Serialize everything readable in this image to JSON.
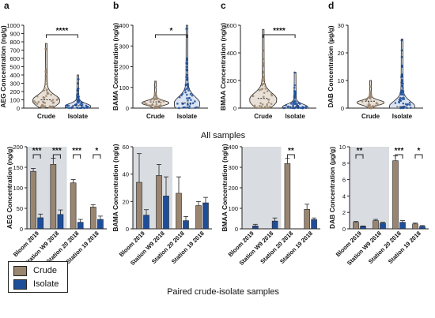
{
  "colors": {
    "crude": "#9a8570",
    "isolate": "#1f4e99",
    "shade": "#d9dde1",
    "axis": "#222222"
  },
  "figure": {
    "section_top": "All samples",
    "section_bottom": "Paired crude-isolate samples"
  },
  "legend": {
    "items": [
      {
        "label": "Crude",
        "color": "#9a8570"
      },
      {
        "label": "Isolate",
        "color": "#1f4e99"
      }
    ]
  },
  "chart_data": [
    {
      "panel": "a",
      "type": "violin",
      "ylabel": "AEG Concentration (ng/g)",
      "ylim": [
        0,
        1000
      ],
      "yticks": [
        0,
        100,
        200,
        300,
        400,
        500,
        600,
        700,
        800,
        900,
        1000
      ],
      "categories": [
        "Crude",
        "Isolate"
      ],
      "series": [
        {
          "name": "Crude",
          "min": 5,
          "max": 780,
          "median": 100,
          "mode": 90
        },
        {
          "name": "Isolate",
          "min": 0,
          "max": 400,
          "median": 30,
          "mode": 20
        }
      ],
      "significance": [
        {
          "between": [
            "Crude",
            "Isolate"
          ],
          "label": "****"
        }
      ]
    },
    {
      "panel": "b",
      "type": "violin",
      "ylabel": "BAMA Concentration (ng/g)",
      "ylim": [
        0,
        400
      ],
      "yticks": [
        0,
        100,
        200,
        300,
        400
      ],
      "categories": [
        "Crude",
        "Isolate"
      ],
      "series": [
        {
          "name": "Crude",
          "min": 0,
          "max": 130,
          "median": 30,
          "mode": 25
        },
        {
          "name": "Isolate",
          "min": 0,
          "max": 400,
          "median": 25,
          "mode": 20
        }
      ],
      "significance": [
        {
          "between": [
            "Crude",
            "Isolate"
          ],
          "label": "*"
        }
      ]
    },
    {
      "panel": "c",
      "type": "violin",
      "ylabel": "BMAA Concentration (ng/g)",
      "ylim": [
        0,
        600
      ],
      "yticks": [
        0,
        200,
        400,
        600
      ],
      "categories": [
        "Crude",
        "Isolate"
      ],
      "series": [
        {
          "name": "Crude",
          "min": 0,
          "max": 570,
          "median": 70,
          "mode": 60
        },
        {
          "name": "Isolate",
          "min": 0,
          "max": 260,
          "median": 10,
          "mode": 5
        }
      ],
      "significance": [
        {
          "between": [
            "Crude",
            "Isolate"
          ],
          "label": "****"
        }
      ]
    },
    {
      "panel": "d",
      "type": "violin",
      "ylabel": "DAB Concentration (µg/g)",
      "ylim": [
        0,
        30
      ],
      "yticks": [
        0,
        10,
        20,
        30
      ],
      "categories": [
        "Crude",
        "Isolate"
      ],
      "series": [
        {
          "name": "Crude",
          "min": 0,
          "max": 10,
          "median": 2.5,
          "mode": 2
        },
        {
          "name": "Isolate",
          "min": 0,
          "max": 25,
          "median": 0.5,
          "mode": 0.3
        }
      ]
    },
    {
      "panel": "e",
      "type": "bar",
      "ylabel": "AEG Concentration (ng/g)",
      "ylim": [
        0,
        200
      ],
      "yticks": [
        0,
        50,
        100,
        150,
        200
      ],
      "categories": [
        "Bloom 2019",
        "Station W9 2018",
        "Station 20 2018",
        "Station 19 2018"
      ],
      "shaded_categories": [
        0,
        1
      ],
      "series": [
        {
          "name": "Crude",
          "values": [
            140,
            157,
            112,
            53
          ],
          "errors": [
            7,
            15,
            8,
            6
          ]
        },
        {
          "name": "Isolate",
          "values": [
            27,
            35,
            16,
            23
          ],
          "errors": [
            9,
            11,
            7,
            8
          ]
        }
      ],
      "significance": [
        "***",
        "***",
        "***",
        "*"
      ]
    },
    {
      "panel": "f",
      "type": "bar",
      "ylabel": "BAMA Concentration (ng/g)",
      "ylim": [
        0,
        60
      ],
      "yticks": [
        0,
        20,
        40,
        60
      ],
      "categories": [
        "Bloom 2019",
        "Station W9 2018",
        "Station 20 2018",
        "Station 19 2018"
      ],
      "shaded_categories": [
        0,
        1
      ],
      "series": [
        {
          "name": "Crude",
          "values": [
            34,
            39,
            26,
            17
          ],
          "errors": [
            21,
            8,
            12,
            3
          ]
        },
        {
          "name": "Isolate",
          "values": [
            10,
            24,
            6,
            19
          ],
          "errors": [
            4,
            14,
            3,
            4
          ]
        }
      ],
      "significance": [
        "",
        "",
        "",
        ""
      ]
    },
    {
      "panel": "g",
      "type": "bar",
      "ylabel": "BMAA Concentration (ng/g)",
      "ylim": [
        0,
        400
      ],
      "yticks": [
        0,
        100,
        200,
        300,
        400
      ],
      "categories": [
        "Bloom 2019",
        "Station W9 2018",
        "Station 20 2018",
        "Station 19 2018"
      ],
      "shaded_categories": [
        0,
        1
      ],
      "series": [
        {
          "name": "Crude",
          "values": [
            0,
            0,
            318,
            95
          ],
          "errors": [
            0,
            0,
            25,
            25
          ]
        },
        {
          "name": "Isolate",
          "values": [
            14,
            38,
            0,
            45
          ],
          "errors": [
            8,
            15,
            0,
            8
          ]
        }
      ],
      "significance": [
        "",
        "",
        "**",
        ""
      ]
    },
    {
      "panel": "h",
      "type": "bar",
      "ylabel": "DAB Concentration (µg/g)",
      "ylim": [
        0,
        10
      ],
      "yticks": [
        0,
        2,
        4,
        6,
        8,
        10
      ],
      "categories": [
        "Bloom 2019",
        "Station W9 2018",
        "Station 20 2018",
        "Station 19 2018"
      ],
      "shaded_categories": [
        0,
        1
      ],
      "series": [
        {
          "name": "Crude",
          "values": [
            0.8,
            1.0,
            8.3,
            0.6
          ],
          "errors": [
            0.1,
            0.15,
            0.6,
            0.1
          ]
        },
        {
          "name": "Isolate",
          "values": [
            0.3,
            0.7,
            0.8,
            0.3
          ],
          "errors": [
            0.05,
            0.1,
            0.2,
            0.1
          ]
        }
      ],
      "significance": [
        "**",
        "",
        "***",
        "*"
      ]
    }
  ]
}
